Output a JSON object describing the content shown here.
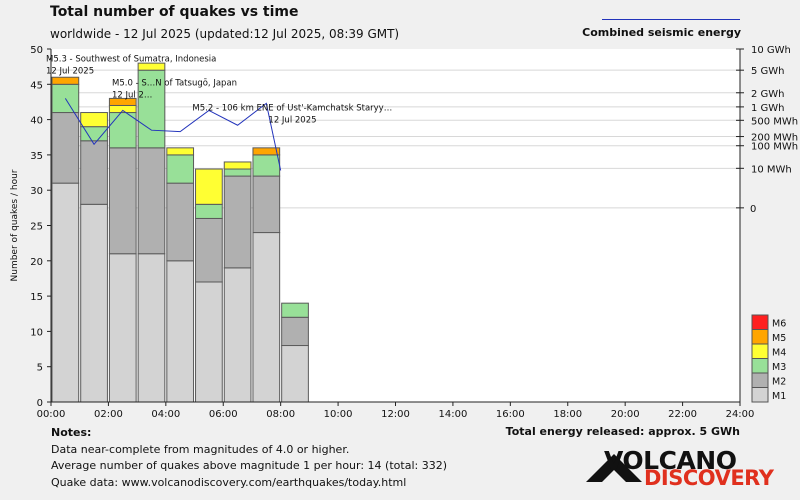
{
  "header": {
    "title": "Total number of quakes vs time",
    "subtitle": "worldwide - 12 Jul 2025 (updated:12 Jul 2025, 08:39 GMT)",
    "energy_legend": "Combined seismic energy"
  },
  "notes": {
    "heading": "Notes:",
    "line1": "Data near-complete from magnitudes of 4.0 or higher.",
    "line2": "Average number of quakes above magnitude 1 per hour: 14 (total: 332)",
    "line3": "Quake data: www.volcanodiscovery.com/earthquakes/today.html",
    "energy_total": "Total energy released: approx. 5 GWh"
  },
  "logo": {
    "word1": "VOLCANO",
    "word2": "DISCOVERY"
  },
  "colors": {
    "M1": "#d3d3d3",
    "M2": "#b0b0b0",
    "M3": "#98e098",
    "M4": "#ffff33",
    "M5": "#ffa500",
    "M6": "#ff2020",
    "energy_line": "#2233bb",
    "background": "#f0f0f0"
  },
  "chart_data": {
    "type": "bar",
    "stacked": true,
    "ylabel": "Number of quakes / hour",
    "ylim": [
      0,
      50
    ],
    "y_ticks": [
      0,
      5,
      10,
      15,
      20,
      25,
      30,
      35,
      40,
      45,
      50
    ],
    "x_ticks": [
      "00:00",
      "02:00",
      "04:00",
      "06:00",
      "08:00",
      "10:00",
      "12:00",
      "14:00",
      "16:00",
      "18:00",
      "20:00",
      "22:00",
      "24:00"
    ],
    "hours": [
      0,
      1,
      2,
      3,
      4,
      5,
      6,
      7,
      8
    ],
    "series": [
      {
        "name": "M1",
        "values": [
          31,
          28,
          21,
          21,
          20,
          17,
          19,
          24,
          8
        ]
      },
      {
        "name": "M2",
        "values": [
          10,
          9,
          15,
          15,
          11,
          9,
          13,
          8,
          4
        ]
      },
      {
        "name": "M3",
        "values": [
          4,
          2,
          5,
          11,
          4,
          2,
          1,
          3,
          2
        ]
      },
      {
        "name": "M4",
        "values": [
          0,
          2,
          1,
          1,
          1,
          5,
          1,
          0,
          0
        ]
      },
      {
        "name": "M5",
        "values": [
          1,
          0,
          1,
          0,
          0,
          0,
          0,
          1,
          0
        ]
      },
      {
        "name": "M6",
        "values": [
          0,
          0,
          0,
          0,
          0,
          0,
          0,
          0,
          0
        ]
      }
    ],
    "energy_axis_ticks": [
      {
        "label": "10 GWh",
        "y": 50
      },
      {
        "label": "5 GWh",
        "y": 47
      },
      {
        "label": "2 GWh",
        "y": 43.8
      },
      {
        "label": "1 GWh",
        "y": 41.8
      },
      {
        "label": "500 MWh",
        "y": 39.9
      },
      {
        "label": "200 MWh",
        "y": 37.6
      },
      {
        "label": "100 MWh",
        "y": 36.3
      },
      {
        "label": "10 MWh",
        "y": 33.1
      },
      {
        "label": "0",
        "y": 27.5
      }
    ],
    "energy_line": {
      "x": [
        0.5,
        1.5,
        2.5,
        3.5,
        4.5,
        5.5,
        6.5,
        7.5,
        8.0
      ],
      "y": [
        43,
        36.5,
        41.3,
        38.5,
        38.3,
        41.3,
        39.2,
        42.3,
        32.8
      ]
    },
    "annotations": [
      {
        "line1": "M5.3 - Southwest of Sumatra, Indonesia",
        "line2": "12 Jul 2025",
        "x": 0,
        "y": 48.2
      },
      {
        "line1": "M5.0 - S…N of Tatsugō, Japan",
        "line2": "12 Jul 2…",
        "x": 2.3,
        "y": 44.8
      },
      {
        "line1": "M5.2 - 106 km ENE of Ust'-Kamchatsk Staryy…",
        "line2": "12 Jul 2025",
        "x": 5.1,
        "y": 41.3
      }
    ]
  }
}
